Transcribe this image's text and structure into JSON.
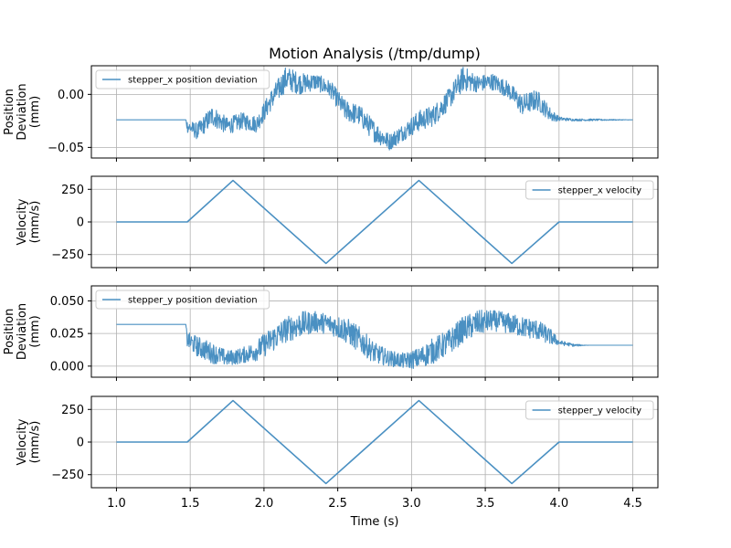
{
  "figure": {
    "title": "Motion Analysis (/tmp/dump)",
    "xlabel": "Time (s)",
    "line_color": "#4a90c2",
    "grid_color": "#b0b0b0"
  },
  "chart_data": [
    {
      "type": "line",
      "ylabel_lines": [
        "Position",
        "Deviation",
        "(mm)"
      ],
      "xlim": [
        0.83,
        4.67
      ],
      "ylim": [
        -0.06,
        0.027
      ],
      "yticks": [
        0.0,
        -0.05
      ],
      "ytick_labels": [
        "0.00",
        "−0.05"
      ],
      "xticks": [
        1.0,
        1.5,
        2.0,
        2.5,
        3.0,
        3.5,
        4.0,
        4.5
      ],
      "grid": true,
      "legend_location": "upper left",
      "series": [
        {
          "name": "stepper_x position deviation",
          "kind": "noisy",
          "x_range": [
            1.0,
            4.5
          ],
          "x": [
            1.0,
            1.47,
            1.48,
            1.55,
            1.65,
            1.75,
            1.85,
            1.95,
            2.05,
            2.15,
            2.25,
            2.35,
            2.45,
            2.55,
            2.65,
            2.75,
            2.85,
            2.95,
            3.05,
            3.15,
            3.25,
            3.35,
            3.45,
            3.55,
            3.65,
            3.75,
            3.85,
            3.95,
            4.0,
            4.1,
            4.2,
            4.5
          ],
          "y": [
            -0.024,
            -0.024,
            -0.03,
            -0.035,
            -0.02,
            -0.03,
            -0.025,
            -0.028,
            -0.005,
            0.015,
            0.01,
            0.012,
            0.005,
            -0.015,
            -0.02,
            -0.035,
            -0.045,
            -0.035,
            -0.025,
            -0.02,
            -0.005,
            0.015,
            0.01,
            0.012,
            0.005,
            -0.01,
            -0.005,
            -0.02,
            -0.023,
            -0.024,
            -0.024,
            -0.024
          ],
          "noise": [
            0.0,
            0.0,
            0.006,
            0.008,
            0.01,
            0.008,
            0.008,
            0.008,
            0.01,
            0.012,
            0.01,
            0.008,
            0.008,
            0.01,
            0.01,
            0.01,
            0.008,
            0.008,
            0.01,
            0.01,
            0.01,
            0.012,
            0.008,
            0.008,
            0.008,
            0.01,
            0.01,
            0.006,
            0.002,
            0.001,
            0.001,
            0.0
          ]
        }
      ]
    },
    {
      "type": "line",
      "ylabel_lines": [
        "Velocity",
        "(mm/s)"
      ],
      "xlim": [
        0.83,
        4.67
      ],
      "ylim": [
        -350,
        350
      ],
      "yticks": [
        250,
        0,
        -250
      ],
      "ytick_labels": [
        "250",
        "0",
        "−250"
      ],
      "xticks": [
        1.0,
        1.5,
        2.0,
        2.5,
        3.0,
        3.5,
        4.0,
        4.5
      ],
      "grid": true,
      "legend_location": "upper right",
      "series": [
        {
          "name": "stepper_x velocity",
          "kind": "line",
          "x": [
            1.0,
            1.48,
            1.79,
            2.42,
            3.05,
            3.68,
            4.0,
            4.5
          ],
          "y": [
            0,
            0,
            318,
            -318,
            318,
            -318,
            0,
            0
          ]
        }
      ]
    },
    {
      "type": "line",
      "ylabel_lines": [
        "Position",
        "Deviation",
        "(mm)"
      ],
      "xlim": [
        0.83,
        4.67
      ],
      "ylim": [
        -0.0085,
        0.0615
      ],
      "yticks": [
        0.05,
        0.025,
        0.0
      ],
      "ytick_labels": [
        "0.050",
        "0.025",
        "0.000"
      ],
      "xticks": [
        1.0,
        1.5,
        2.0,
        2.5,
        3.0,
        3.5,
        4.0,
        4.5
      ],
      "grid": true,
      "legend_location": "upper left",
      "series": [
        {
          "name": "stepper_y position deviation",
          "kind": "noisy",
          "x_range": [
            1.0,
            4.5
          ],
          "x": [
            1.0,
            1.47,
            1.48,
            1.55,
            1.65,
            1.75,
            1.85,
            1.95,
            2.05,
            2.15,
            2.25,
            2.35,
            2.45,
            2.55,
            2.65,
            2.75,
            2.85,
            2.95,
            3.05,
            3.15,
            3.25,
            3.35,
            3.45,
            3.55,
            3.65,
            3.75,
            3.85,
            3.95,
            4.0,
            4.1,
            4.2,
            4.5
          ],
          "y": [
            0.032,
            0.032,
            0.02,
            0.015,
            0.01,
            0.006,
            0.008,
            0.012,
            0.02,
            0.028,
            0.032,
            0.034,
            0.032,
            0.028,
            0.02,
            0.01,
            0.006,
            0.004,
            0.006,
            0.012,
            0.018,
            0.028,
            0.033,
            0.035,
            0.033,
            0.03,
            0.028,
            0.022,
            0.018,
            0.016,
            0.016,
            0.016
          ],
          "noise": [
            0.0,
            0.0,
            0.006,
            0.008,
            0.008,
            0.006,
            0.006,
            0.008,
            0.01,
            0.01,
            0.01,
            0.008,
            0.008,
            0.01,
            0.01,
            0.008,
            0.006,
            0.006,
            0.008,
            0.01,
            0.01,
            0.01,
            0.01,
            0.008,
            0.008,
            0.008,
            0.008,
            0.006,
            0.002,
            0.001,
            0.0,
            0.0
          ]
        }
      ]
    },
    {
      "type": "line",
      "ylabel_lines": [
        "Velocity",
        "(mm/s)"
      ],
      "xlim": [
        0.83,
        4.67
      ],
      "ylim": [
        -350,
        350
      ],
      "yticks": [
        250,
        0,
        -250
      ],
      "ytick_labels": [
        "250",
        "0",
        "−250"
      ],
      "xticks": [
        1.0,
        1.5,
        2.0,
        2.5,
        3.0,
        3.5,
        4.0,
        4.5
      ],
      "xtick_labels": [
        "1.0",
        "1.5",
        "2.0",
        "2.5",
        "3.0",
        "3.5",
        "4.0",
        "4.5"
      ],
      "grid": true,
      "legend_location": "upper right",
      "series": [
        {
          "name": "stepper_y velocity",
          "kind": "line",
          "x": [
            1.0,
            1.48,
            1.79,
            2.42,
            3.05,
            3.68,
            4.0,
            4.5
          ],
          "y": [
            0,
            0,
            318,
            -318,
            318,
            -318,
            0,
            0
          ]
        }
      ]
    }
  ]
}
